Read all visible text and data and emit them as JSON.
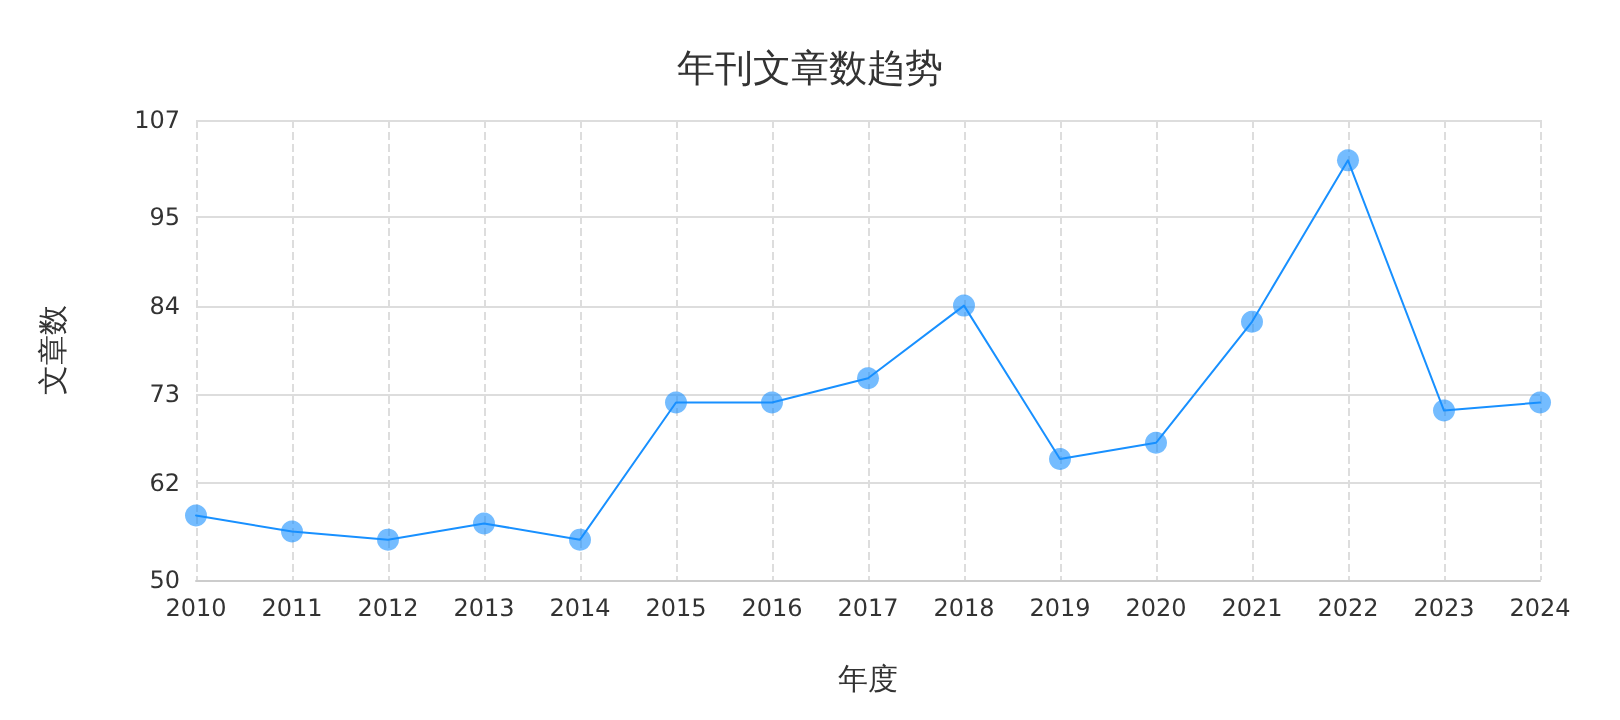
{
  "chart_data": {
    "type": "line",
    "title": "年刊文章数趋势",
    "xlabel": "年度",
    "ylabel": "文章数",
    "categories": [
      "2010",
      "2011",
      "2012",
      "2013",
      "2014",
      "2015",
      "2016",
      "2017",
      "2018",
      "2019",
      "2020",
      "2021",
      "2022",
      "2023",
      "2024"
    ],
    "series": [
      {
        "color": "#1890ff",
        "values": [
          58,
          56,
          55,
          57,
          55,
          72,
          72,
          75,
          84,
          65,
          67,
          82,
          102,
          71,
          72
        ]
      }
    ],
    "ylim": [
      50,
      107
    ],
    "yticks": [
      50,
      62,
      73,
      84,
      95,
      107
    ],
    "grid": true,
    "marker": "circle",
    "line_style": "solid"
  }
}
